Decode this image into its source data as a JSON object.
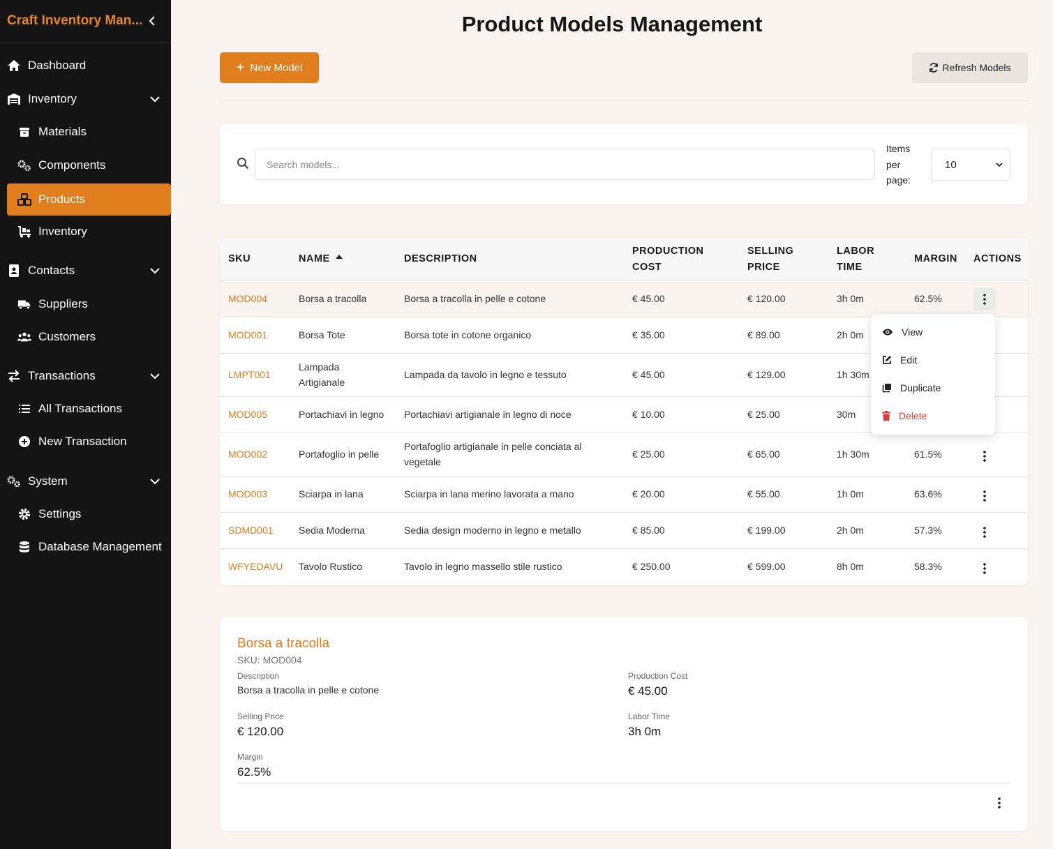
{
  "app": {
    "title": "Craft Inventory Man..."
  },
  "sidebar": {
    "items": [
      {
        "label": "Dashboard",
        "icon": "home-icon"
      },
      {
        "label": "Inventory",
        "icon": "warehouse-icon"
      },
      {
        "label": "Materials",
        "icon": "box-icon"
      },
      {
        "label": "Components",
        "icon": "gears-icon"
      },
      {
        "label": "Products",
        "icon": "cubes-icon"
      },
      {
        "label": "Inventory",
        "icon": "dolly-icon"
      },
      {
        "label": "Contacts",
        "icon": "address-book-icon"
      },
      {
        "label": "Suppliers",
        "icon": "truck-icon"
      },
      {
        "label": "Customers",
        "icon": "users-icon"
      },
      {
        "label": "Transactions",
        "icon": "exchange-icon"
      },
      {
        "label": "All Transactions",
        "icon": "list-icon"
      },
      {
        "label": "New Transaction",
        "icon": "plus-circle-icon"
      },
      {
        "label": "System",
        "icon": "gears-icon"
      },
      {
        "label": "Settings",
        "icon": "gear-icon"
      },
      {
        "label": "Database Management",
        "icon": "database-icon"
      }
    ]
  },
  "page": {
    "title": "Product Models Management"
  },
  "toolbar": {
    "new_label": "New Model",
    "refresh_label": "Refresh Models"
  },
  "search": {
    "placeholder": "Search models...",
    "items_per_page_label": "Items per page:",
    "items_per_page_value": "10"
  },
  "table": {
    "headers": {
      "sku": "SKU",
      "name": "NAME",
      "description": "DESCRIPTION",
      "production_cost": "PRODUCTION COST",
      "selling_price": "SELLING PRICE",
      "labor_time": "LABOR TIME",
      "margin": "MARGIN",
      "actions": "ACTIONS"
    },
    "rows": [
      {
        "sku": "MOD004",
        "name": "Borsa a tracolla",
        "description": "Borsa a tracolla in pelle e cotone",
        "production_cost": "€ 45.00",
        "selling_price": "€ 120.00",
        "labor_time": "3h 0m",
        "margin": "62.5%"
      },
      {
        "sku": "MOD001",
        "name": "Borsa Tote",
        "description": "Borsa tote in cotone organico",
        "production_cost": "€ 35.00",
        "selling_price": "€ 89.00",
        "labor_time": "2h 0m",
        "margin": ""
      },
      {
        "sku": "LMPT001",
        "name": "Lampada Artigianale",
        "description": "Lampada da tavolo in legno e tessuto",
        "production_cost": "€ 45.00",
        "selling_price": "€ 129.00",
        "labor_time": "1h 30m",
        "margin": ""
      },
      {
        "sku": "MOD005",
        "name": "Portachiavi in legno",
        "description": "Portachiavi artigianale in legno di noce",
        "production_cost": "€ 10.00",
        "selling_price": "€ 25.00",
        "labor_time": "30m",
        "margin": ""
      },
      {
        "sku": "MOD002",
        "name": "Portafoglio in pelle",
        "description": "Portafoglio artigianale in pelle conciata al vegetale",
        "production_cost": "€ 25.00",
        "selling_price": "€ 65.00",
        "labor_time": "1h 30m",
        "margin": "61.5%"
      },
      {
        "sku": "MOD003",
        "name": "Sciarpa in lana",
        "description": "Sciarpa in lana merino lavorata a mano",
        "production_cost": "€ 20.00",
        "selling_price": "€ 55.00",
        "labor_time": "1h 0m",
        "margin": "63.6%"
      },
      {
        "sku": "SDMD001",
        "name": "Sedia Moderna",
        "description": "Sedia design moderno in legno e metallo",
        "production_cost": "€ 85.00",
        "selling_price": "€ 199.00",
        "labor_time": "2h 0m",
        "margin": "57.3%"
      },
      {
        "sku": "WFYEDAVU",
        "name": "Tavolo Rustico",
        "description": "Tavolo in legno massello stile rustico",
        "production_cost": "€ 250.00",
        "selling_price": "€ 599.00",
        "labor_time": "8h 0m",
        "margin": "58.3%"
      }
    ]
  },
  "menu": {
    "view": "View",
    "edit": "Edit",
    "duplicate": "Duplicate",
    "delete": "Delete"
  },
  "detail": {
    "title": "Borsa a tracolla",
    "sku": "SKU: MOD004",
    "description_label": "Description",
    "description": "Borsa a tracolla in pelle e cotone",
    "production_cost_label": "Production Cost",
    "production_cost": "€ 45.00",
    "selling_price_label": "Selling Price",
    "selling_price": "€ 120.00",
    "labor_time_label": "Labor Time",
    "labor_time": "3h 0m",
    "margin_label": "Margin",
    "margin": "62.5%"
  },
  "colors": {
    "accent": "#e07d1c",
    "sidebar_bg": "#141414",
    "danger": "#e53935",
    "page_bg": "#fbf3f0"
  }
}
